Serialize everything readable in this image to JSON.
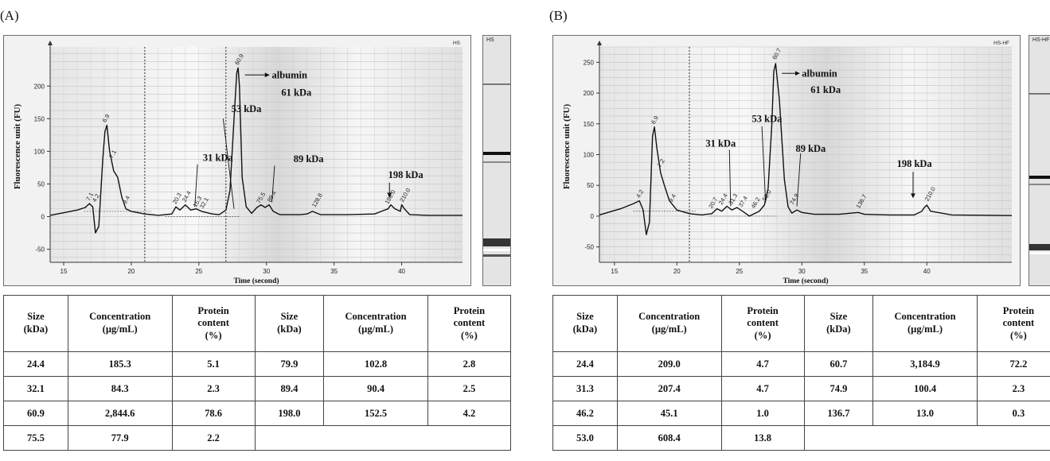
{
  "panels": [
    {
      "label": "(A)",
      "gel_tag": "HS",
      "plot_tag": "HS",
      "headers": {
        "size": [
          "Size",
          "(kDa)"
        ],
        "conc": [
          "Concentration",
          "(µg/mL)"
        ],
        "prot": [
          "Protein",
          "content",
          "(%)"
        ]
      },
      "rows": [
        [
          "24.4",
          "185.3",
          "5.1",
          "79.9",
          "102.8",
          "2.8"
        ],
        [
          "32.1",
          "84.3",
          "2.3",
          "89.4",
          "90.4",
          "2.5"
        ],
        [
          "60.9",
          "2,844.6",
          "78.6",
          "198.0",
          "152.5",
          "4.2"
        ],
        [
          "75.5",
          "77.9",
          "2.2",
          "",
          "",
          ""
        ]
      ]
    },
    {
      "label": "(B)",
      "gel_tag": "HS-HF",
      "plot_tag": "HS-HF",
      "headers": {
        "size": [
          "Size",
          "(kDa)"
        ],
        "conc": [
          "Concentration",
          "(µg/mL)"
        ],
        "prot": [
          "Protein",
          "content",
          "(%)"
        ]
      },
      "rows": [
        [
          "24.4",
          "209.0",
          "4.7",
          "60.7",
          "3,184.9",
          "72.2"
        ],
        [
          "31.3",
          "207.4",
          "4.7",
          "74.9",
          "100.4",
          "2.3"
        ],
        [
          "46.2",
          "45.1",
          "1.0",
          "136.7",
          "13.0",
          "0.3"
        ],
        [
          "53.0",
          "608.4",
          "13.8",
          "",
          "",
          ""
        ]
      ]
    }
  ],
  "chart_data": [
    {
      "type": "line",
      "xlabel": "Time (second)",
      "ylabel": "Fluorescence unit (FU)",
      "xlim": [
        14,
        44.5
      ],
      "ylim": [
        -70,
        260
      ],
      "xticks": [
        15,
        20,
        25,
        30,
        35,
        40
      ],
      "yticks": [
        -50,
        0,
        50,
        100,
        150,
        200
      ],
      "dashed_lines_x": [
        21,
        27
      ],
      "x": [
        14,
        16,
        16.6,
        16.9,
        17.15,
        17.35,
        17.6,
        17.9,
        18.05,
        18.2,
        18.4,
        18.7,
        19.0,
        19.3,
        19.6,
        20.0,
        21.0,
        22.0,
        23.0,
        23.3,
        23.6,
        24.0,
        24.4,
        24.8,
        25.2,
        25.6,
        26.0,
        26.5,
        27.0,
        27.3,
        27.6,
        27.8,
        27.9,
        28.0,
        28.2,
        28.5,
        28.9,
        29.3,
        29.6,
        29.9,
        30.2,
        30.5,
        31.0,
        32.5,
        33.0,
        33.4,
        34.0,
        36.0,
        38.0,
        38.5,
        39.0,
        39.2,
        39.5,
        39.9,
        40.0,
        40.2,
        40.6,
        42.0,
        44.5
      ],
      "y": [
        2,
        10,
        14,
        20,
        15,
        -25,
        -15,
        90,
        130,
        140,
        100,
        70,
        60,
        30,
        12,
        8,
        4,
        2,
        4,
        15,
        10,
        18,
        10,
        12,
        8,
        6,
        4,
        3,
        10,
        40,
        150,
        220,
        228,
        200,
        60,
        15,
        5,
        14,
        18,
        14,
        18,
        8,
        3,
        3,
        4,
        8,
        3,
        3,
        4,
        8,
        12,
        18,
        12,
        8,
        18,
        12,
        3,
        2,
        2
      ],
      "peak_labels": [
        {
          "x": 16.9,
          "y": 20,
          "text": "7.1"
        },
        {
          "x": 17.35,
          "y": 18,
          "text": "4.2"
        },
        {
          "x": 18.1,
          "y": 140,
          "text": "6.9"
        },
        {
          "x": 18.6,
          "y": 85,
          "text": "7.1"
        },
        {
          "x": 19.6,
          "y": 15,
          "text": "9.4"
        },
        {
          "x": 23.3,
          "y": 15,
          "text": "20.3"
        },
        {
          "x": 24.0,
          "y": 18,
          "text": "24.4"
        },
        {
          "x": 24.8,
          "y": 10,
          "text": "15.3"
        },
        {
          "x": 25.3,
          "y": 8,
          "text": "32.1"
        },
        {
          "x": 27.9,
          "y": 228,
          "text": "60.9"
        },
        {
          "x": 29.5,
          "y": 16,
          "text": "75.5"
        },
        {
          "x": 30.3,
          "y": 18,
          "text": "89.4"
        },
        {
          "x": 33.6,
          "y": 10,
          "text": "128.8"
        },
        {
          "x": 39.0,
          "y": 15,
          "text": "198.0"
        },
        {
          "x": 40.1,
          "y": 18,
          "text": "210.0"
        }
      ],
      "annotations": [
        {
          "text": "albumin",
          "x": 30.4,
          "y": 217,
          "arrow_from": [
            28.4,
            217
          ],
          "arrow_to": [
            30.2,
            217
          ]
        },
        {
          "text": "61 kDa",
          "x": 31.1,
          "y": 190
        },
        {
          "text": "53 kDa",
          "x": 27.4,
          "y": 165,
          "line_from": [
            26.8,
            150
          ],
          "line_to": [
            27.6,
            12
          ]
        },
        {
          "text": "31 kDa",
          "x": 25.3,
          "y": 90,
          "line_from": [
            24.9,
            80
          ],
          "line_to": [
            24.7,
            15
          ]
        },
        {
          "text": "89 kDa",
          "x": 32.0,
          "y": 88,
          "line_from": [
            30.6,
            78
          ],
          "line_to": [
            30.4,
            22
          ]
        },
        {
          "text": "198 kDa",
          "x": 39.0,
          "y": 64,
          "arrow_from": [
            39.1,
            52
          ],
          "arrow_to": [
            39.1,
            30
          ]
        }
      ]
    },
    {
      "type": "line",
      "xlabel": "Time (second)",
      "ylabel": "Fluorescence unit (FU)",
      "xlim": [
        13.8,
        46.8
      ],
      "ylim": [
        -75,
        275
      ],
      "xticks": [
        15,
        20,
        25,
        30,
        35,
        40
      ],
      "yticks": [
        -50,
        0,
        50,
        100,
        150,
        200,
        250
      ],
      "dashed_lines_x": [
        21
      ],
      "x": [
        13.8,
        15.5,
        16.5,
        17.0,
        17.3,
        17.55,
        17.8,
        18.05,
        18.2,
        18.4,
        18.7,
        19.0,
        19.4,
        20.0,
        21.0,
        22.0,
        22.8,
        23.2,
        23.6,
        24.0,
        24.4,
        24.8,
        25.4,
        25.8,
        26.2,
        26.6,
        27.0,
        27.3,
        27.6,
        27.75,
        27.9,
        28.2,
        28.6,
        28.9,
        29.2,
        29.6,
        30.0,
        31.0,
        33.0,
        34.5,
        35.0,
        37.0,
        39.0,
        39.6,
        39.8,
        40.0,
        40.3,
        42.0,
        46.8
      ],
      "y": [
        2,
        12,
        20,
        25,
        10,
        -30,
        -10,
        130,
        145,
        110,
        70,
        50,
        25,
        10,
        4,
        2,
        4,
        12,
        8,
        16,
        10,
        14,
        6,
        0,
        4,
        8,
        18,
        45,
        150,
        235,
        248,
        190,
        60,
        15,
        5,
        10,
        6,
        3,
        3,
        6,
        3,
        2,
        2,
        8,
        14,
        18,
        8,
        2,
        1
      ],
      "peak_labels": [
        {
          "x": 17.0,
          "y": 25,
          "text": "4.2"
        },
        {
          "x": 18.2,
          "y": 145,
          "text": "6.9"
        },
        {
          "x": 18.7,
          "y": 75,
          "text": "7.2"
        },
        {
          "x": 19.6,
          "y": 18,
          "text": "9.4"
        },
        {
          "x": 22.8,
          "y": 8,
          "text": "20.7"
        },
        {
          "x": 23.6,
          "y": 14,
          "text": "24.4"
        },
        {
          "x": 24.4,
          "y": 14,
          "text": "31.3"
        },
        {
          "x": 25.2,
          "y": 10,
          "text": "37.4"
        },
        {
          "x": 26.2,
          "y": 8,
          "text": "46.2"
        },
        {
          "x": 27.1,
          "y": 20,
          "text": "53.0"
        },
        {
          "x": 27.9,
          "y": 250,
          "text": "60.7"
        },
        {
          "x": 29.3,
          "y": 14,
          "text": "74.9"
        },
        {
          "x": 34.6,
          "y": 8,
          "text": "136.7"
        },
        {
          "x": 40.1,
          "y": 20,
          "text": "210.0"
        }
      ],
      "annotations": [
        {
          "text": "albumin",
          "x": 30.0,
          "y": 232,
          "arrow_from": [
            28.4,
            232
          ],
          "arrow_to": [
            29.8,
            232
          ]
        },
        {
          "text": "61 kDa",
          "x": 30.7,
          "y": 205
        },
        {
          "text": "53 kDa",
          "x": 26.0,
          "y": 158,
          "line_from": [
            26.8,
            146
          ],
          "line_to": [
            27.1,
            22
          ]
        },
        {
          "text": "31 kDa",
          "x": 22.3,
          "y": 118,
          "line_from": [
            24.2,
            108
          ],
          "line_to": [
            24.3,
            16
          ]
        },
        {
          "text": "89 kDa",
          "x": 29.5,
          "y": 110,
          "line_from": [
            29.9,
            102
          ],
          "line_to": [
            29.6,
            16
          ]
        },
        {
          "text": "198 kDa",
          "x": 37.6,
          "y": 85,
          "arrow_from": [
            38.9,
            72
          ],
          "arrow_to": [
            38.9,
            30
          ]
        }
      ]
    }
  ]
}
